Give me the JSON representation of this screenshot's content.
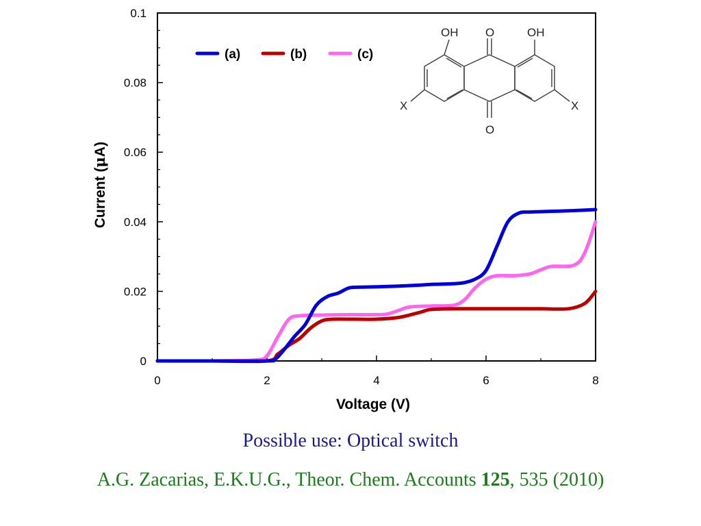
{
  "chart_data": {
    "type": "line",
    "xlabel": "Voltage (V)",
    "ylabel_prefix": "Current (",
    "ylabel_mu": "μ",
    "ylabel_suffix": "A)",
    "xlim": [
      0,
      8
    ],
    "ylim": [
      0,
      0.1
    ],
    "x_ticks": [
      "0",
      "2",
      "4",
      "6",
      "8"
    ],
    "y_ticks": [
      "0",
      "0.02",
      "0.04",
      "0.06",
      "0.08",
      "0.1"
    ],
    "grid": false,
    "legend_position": "top",
    "series": [
      {
        "name": "(a)",
        "color": "#0000dd",
        "x": [
          0,
          1,
          2.0,
          2.15,
          2.3,
          2.5,
          2.7,
          2.9,
          3.1,
          3.3,
          3.5,
          3.7,
          4.0,
          4.4,
          4.8,
          5.0,
          5.4,
          5.6,
          5.8,
          6.0,
          6.2,
          6.4,
          6.6,
          6.8,
          7.2,
          7.6,
          8.0
        ],
        "y": [
          0,
          0,
          0,
          0.0005,
          0.003,
          0.007,
          0.0105,
          0.016,
          0.0185,
          0.0195,
          0.021,
          0.0212,
          0.0213,
          0.0215,
          0.0218,
          0.022,
          0.0222,
          0.0225,
          0.0235,
          0.026,
          0.033,
          0.04,
          0.0425,
          0.0428,
          0.043,
          0.0432,
          0.0435
        ]
      },
      {
        "name": "(b)",
        "color": "#bb0000",
        "x": [
          0,
          1,
          2.0,
          2.2,
          2.4,
          2.6,
          2.8,
          3.0,
          3.2,
          3.6,
          4.0,
          4.4,
          4.8,
          5.0,
          5.5,
          6.0,
          6.5,
          7.0,
          7.5,
          7.8,
          8.0
        ],
        "y": [
          0,
          0,
          0,
          0.002,
          0.0045,
          0.0065,
          0.0095,
          0.0115,
          0.012,
          0.012,
          0.012,
          0.0125,
          0.014,
          0.0148,
          0.015,
          0.015,
          0.015,
          0.015,
          0.015,
          0.0165,
          0.02
        ]
      },
      {
        "name": "(c)",
        "color": "#ff66ee",
        "x": [
          0,
          1,
          1.8,
          2.0,
          2.2,
          2.4,
          2.6,
          3.0,
          3.5,
          4.0,
          4.2,
          4.4,
          4.6,
          5.0,
          5.4,
          5.6,
          5.8,
          6.0,
          6.2,
          6.5,
          6.8,
          7.0,
          7.2,
          7.6,
          7.8,
          8.0
        ],
        "y": [
          0,
          0,
          0.0003,
          0.0015,
          0.007,
          0.012,
          0.013,
          0.0132,
          0.0133,
          0.0133,
          0.0135,
          0.0145,
          0.0155,
          0.0158,
          0.016,
          0.0175,
          0.021,
          0.0235,
          0.0245,
          0.0245,
          0.025,
          0.0262,
          0.0272,
          0.0275,
          0.031,
          0.04
        ]
      }
    ]
  },
  "molecule": {
    "labels": {
      "oh_left": "OH",
      "o_top": "O",
      "oh_right": "OH",
      "x_left": "X",
      "x_right": "X",
      "o_bottom": "O"
    }
  },
  "caption": "Possible use: Optical switch",
  "citation": {
    "authors": "A.G. Zacarias, E.K.U.G., Theor. Chem. Accounts ",
    "volume": "125",
    "rest": ", 535 (2010)"
  }
}
